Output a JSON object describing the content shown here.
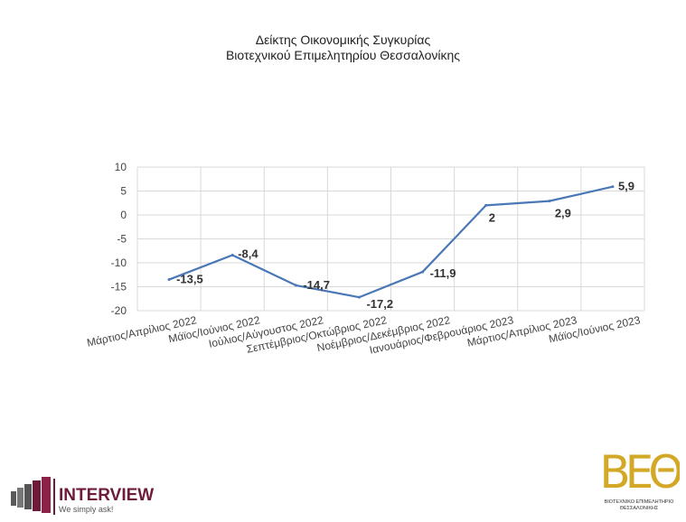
{
  "chart_data": {
    "type": "line",
    "title": [
      "Δείκτης Οικονομικής Συγκυρίας",
      "Βιοτεχνικού Επιμελητηρίου Θεσσαλονίκης"
    ],
    "categories": [
      "Μάρτιος/Απρίλιος 2022",
      "Μάϊος/Ιούνιος 2022",
      "Ιούλιος/Αύγουστος 2022",
      "Σεπτέμβριος/Οκτώβριος 2022",
      "Νοέμβριος/Δεκέμβριος 2022",
      "Ιανουάριος/Φεβρουάριος 2023",
      "Μάρτιος/Απρίλιος 2023",
      "Μάϊος/Ιούνιος 2023"
    ],
    "values": [
      -13.5,
      -8.4,
      -14.7,
      -17.2,
      -11.9,
      2,
      2.9,
      5.9
    ],
    "data_labels": [
      "-13,5",
      "-8,4",
      "-14,7",
      "-17,2",
      "-11,9",
      "2",
      "2,9",
      "5,9"
    ],
    "ylim": [
      -20,
      10
    ],
    "yticks": [
      10,
      5,
      0,
      -5,
      -10,
      -15,
      -20
    ],
    "grid": true,
    "line_color": "#4a78b6"
  },
  "logos": {
    "interview": {
      "name": "INTERVIEW",
      "tagline": "We simply ask!",
      "color": "#6e1a3a"
    },
    "bee": {
      "mark": "ΒΕΘ",
      "caption": [
        "ΒΙΟΤΕΧΝΙΚΟ ΕΠΙΜΕΛΗΤΗΡΙΟ",
        "ΘΕΣΣΑΛΟΝΙΚΗΣ"
      ],
      "color": "#d4a827"
    }
  }
}
